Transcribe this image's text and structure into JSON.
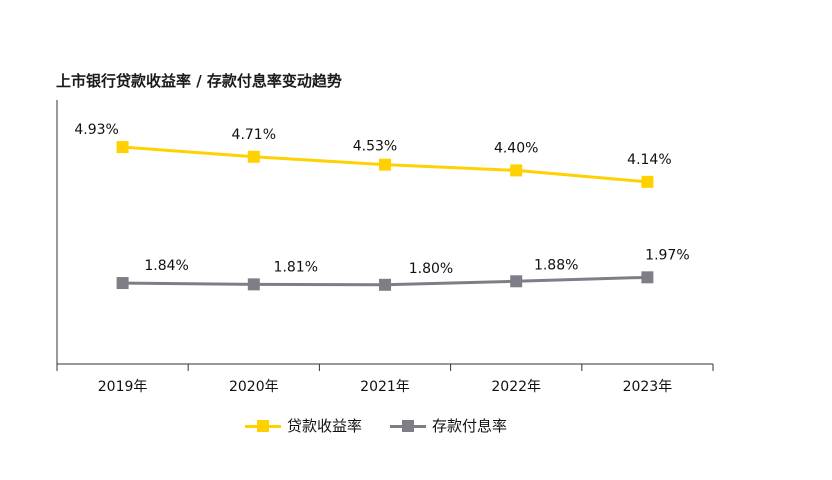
{
  "title": "上市银行贷款收益率 / 存款付息率变动趋势",
  "chart_data": {
    "type": "line",
    "categories": [
      "2019年",
      "2020年",
      "2021年",
      "2022年",
      "2023年"
    ],
    "series": [
      {
        "name": "贷款收益率",
        "values": [
          4.93,
          4.71,
          4.53,
          4.4,
          4.14
        ],
        "labels": [
          "4.93%",
          "4.71%",
          "4.53%",
          "4.40%",
          "4.14%"
        ],
        "color": "#FFD100"
      },
      {
        "name": "存款付息率",
        "values": [
          1.84,
          1.81,
          1.8,
          1.88,
          1.97
        ],
        "labels": [
          "1.84%",
          "1.81%",
          "1.80%",
          "1.88%",
          "1.97%"
        ],
        "color": "#7F7E87"
      }
    ],
    "ylim": [
      0,
      6
    ],
    "grid": false,
    "legend_position": "bottom"
  }
}
